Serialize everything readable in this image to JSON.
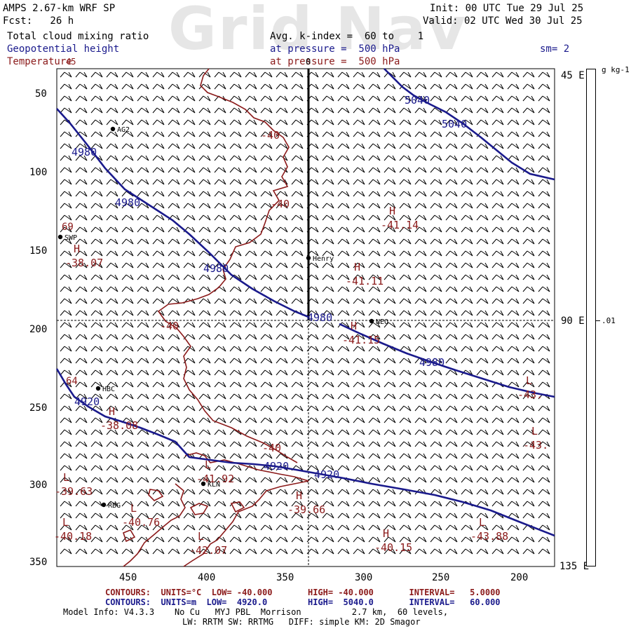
{
  "watermark": "Grid Nav",
  "header": {
    "model": "AMPS 2.67-km WRF SP",
    "fcst": "Fcst:   26 h",
    "init": "Init: 00 UTC Tue 29 Jul 25",
    "valid": "Valid: 02 UTC Wed 30 Jul 25",
    "field1": "Total cloud mixing ratio",
    "field2": "Geopotential height",
    "field3": "Temperature",
    "avg": "Avg. k-index =  60 to    1",
    "pres1": "at pressure =  500 hPa",
    "pres2": "at pressure =  500 hPa",
    "sm": "sm= 2"
  },
  "colorbar": {
    "unit": "g kg-1",
    "label_mid": ".01"
  },
  "right_axis": {
    "top": "45 E",
    "mid": "90 E",
    "bottom": "135 E"
  },
  "left_ticks": [
    "50",
    "100",
    "150",
    "200",
    "250",
    "300",
    "350"
  ],
  "bottom_ticks": [
    "450",
    "400",
    "350",
    "300",
    "250",
    "200"
  ],
  "stations": [
    {
      "name": "AG2"
    },
    {
      "name": "SWP"
    },
    {
      "name": "Henry"
    },
    {
      "name": "NEO"
    },
    {
      "name": "HBC"
    },
    {
      "name": "KLN"
    },
    {
      "name": "RBG"
    }
  ],
  "height_labels": [
    "5040",
    "5040",
    "4980",
    "4980",
    "4980",
    "4980",
    "4980",
    "4920",
    "4920",
    "4920"
  ],
  "temp_labels": [
    "-40",
    "-40",
    "-40",
    "-40"
  ],
  "extrema": [
    {
      "letter": "H",
      "value": "-41.14"
    },
    {
      "letter": "H",
      "value": "-41.11"
    },
    {
      "letter": "H",
      "value": "-38.07"
    },
    {
      "letter": "H",
      "value": "-41.15"
    },
    {
      "letter": "H",
      "value": "-38.08"
    },
    {
      "letter": "L",
      "value": "-41.92"
    },
    {
      "letter": "H",
      "value": "-39.66"
    },
    {
      "letter": "L",
      "value": "-39.63"
    },
    {
      "letter": "L",
      "value": "-40.76"
    },
    {
      "letter": "L",
      "value": "-40.18"
    },
    {
      "letter": "L",
      "value": "-42.07"
    },
    {
      "letter": "H",
      "value": "-40.15"
    },
    {
      "letter": "L",
      "value": "-43.88"
    },
    {
      "letter": "L",
      "value": "-43."
    },
    {
      "letter": "L",
      "value": "-43."
    }
  ],
  "edge_labels": {
    "left1": "69",
    "left2": "64",
    "top": "45",
    "topmid": "0"
  },
  "footer": {
    "line1": "CONTOURS:  UNITS=°C  LOW= -40.000       HIGH= -40.000       INTERVAL=   5.0000",
    "line2": "CONTOURS:  UNITS=m  LOW=  4920.0        HIGH=  5040.0       INTERVAL=   60.000",
    "line3": "Model Info: V4.3.3    No Cu   MYJ PBL  Morrison          2.7 km,  60 levels,",
    "line4": "LW: RRTM SW: RRTMG   DIFF: simple KM: 2D Smagor"
  }
}
